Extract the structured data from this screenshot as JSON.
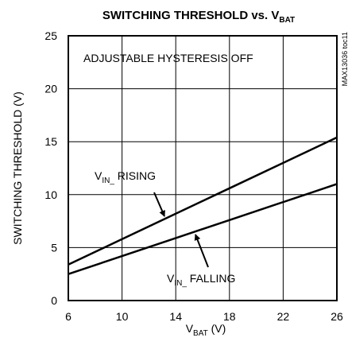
{
  "chart_data": {
    "type": "line",
    "title": [
      "SWITCHING THRESHOLD vs. V",
      "BAT"
    ],
    "x_label": [
      "V",
      "BAT",
      " (V)"
    ],
    "y_label": [
      "SWITCHING THRESHOLD (V)"
    ],
    "annotations": [
      "ADJUSTABLE HYSTERESIS OFF",
      "MAX13036 toc11"
    ],
    "x": [
      6,
      10,
      14,
      18,
      22,
      26
    ],
    "series": [
      {
        "name": [
          "V",
          "IN_",
          " RISING"
        ],
        "color": "#000000",
        "values": [
          3.4,
          5.8,
          8.2,
          10.6,
          13.0,
          15.4
        ]
      },
      {
        "name": [
          "V",
          "IN_",
          " FALLING"
        ],
        "color": "#000000",
        "values": [
          2.5,
          4.2,
          5.9,
          7.6,
          9.3,
          11.0
        ]
      }
    ],
    "xlim": [
      6,
      26
    ],
    "xticks": [
      6,
      10,
      14,
      18,
      22,
      26
    ],
    "ylim": [
      0,
      25
    ],
    "yticks": [
      0,
      5,
      10,
      15,
      20,
      25
    ],
    "grid": true
  }
}
